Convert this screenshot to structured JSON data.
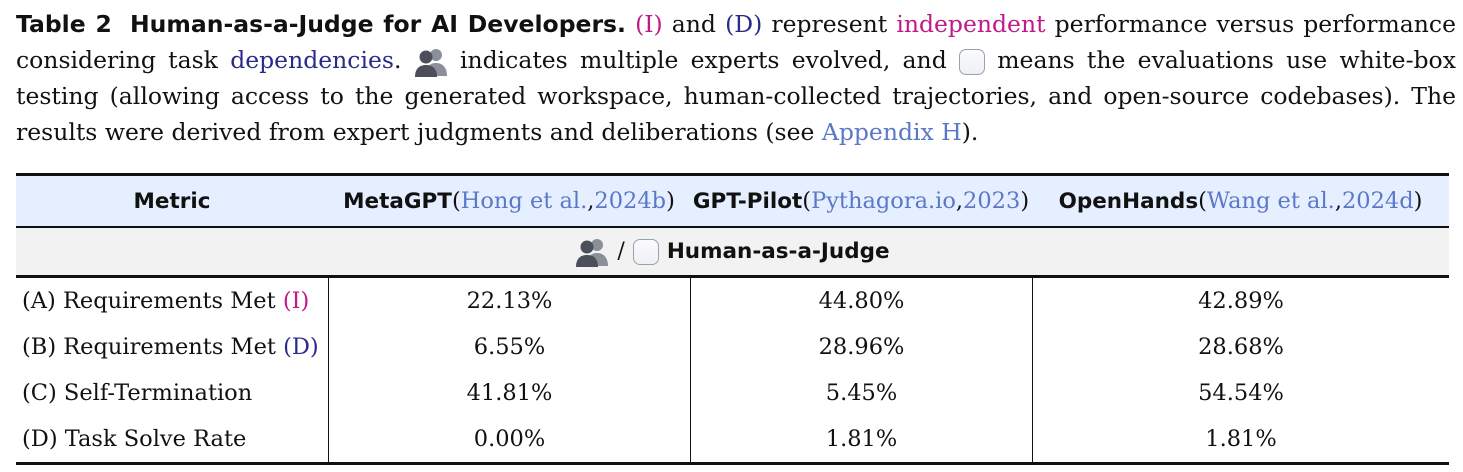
{
  "caption": {
    "label": "Table 2",
    "title": "Human-as-a-Judge for AI Developers.",
    "seg1": "(I)",
    "seg2": " and ",
    "seg3": "(D)",
    "seg4": " represent ",
    "seg5": "independent",
    "seg6": " performance versus performance considering task ",
    "seg7": "dependencies",
    "seg8": ". ",
    "seg9": " indicates multiple experts evolved, and ",
    "seg10": " means the evaluations use white-box testing (allowing access to the generated workspace, human-collected trajectories, and open-source codebases). The results were derived from expert judgments and deliberations (see ",
    "seg11": "Appendix H",
    "seg12": ")."
  },
  "table": {
    "header": {
      "metric": "Metric",
      "cols": [
        {
          "name": "MetaGPT",
          "open": " (",
          "cite_author": "Hong et al.",
          "sep": ", ",
          "cite_year": "2024b",
          "close": ")"
        },
        {
          "name": "GPT-Pilot",
          "open": " (",
          "cite_author": "Pythagora.io",
          "sep": ", ",
          "cite_year": "2023",
          "close": ")"
        },
        {
          "name": "OpenHands",
          "open": " (",
          "cite_author": "Wang et al.",
          "sep": ", ",
          "cite_year": "2024d",
          "close": ")"
        }
      ]
    },
    "subheader": {
      "slash": "/",
      "title": "Human-as-a-Judge"
    },
    "rows": [
      {
        "metric_pre": "(A) Requirements Met ",
        "metric_tag": "(I)",
        "values": [
          "22.13%",
          "44.80%",
          "42.89%"
        ]
      },
      {
        "metric_pre": "(B) Requirements Met ",
        "metric_tag": "(D)",
        "values": [
          "6.55%",
          "28.96%",
          "28.68%"
        ]
      },
      {
        "metric_pre": "(C) Self-Termination",
        "metric_tag": "",
        "values": [
          "41.81%",
          "5.45%",
          "54.54%"
        ]
      },
      {
        "metric_pre": "(D) Task Solve Rate",
        "metric_tag": "",
        "values": [
          "0.00%",
          "1.81%",
          "1.81%"
        ]
      }
    ]
  },
  "icons": {
    "people": "multiple-experts-icon",
    "box": "white-box-icon"
  },
  "colors": {
    "independent": "#c0198a",
    "dependencies": "#2a2a8c",
    "link": "#5b78c8",
    "header_bg": "#e6efff",
    "subheader_bg": "#f2f2f2"
  }
}
